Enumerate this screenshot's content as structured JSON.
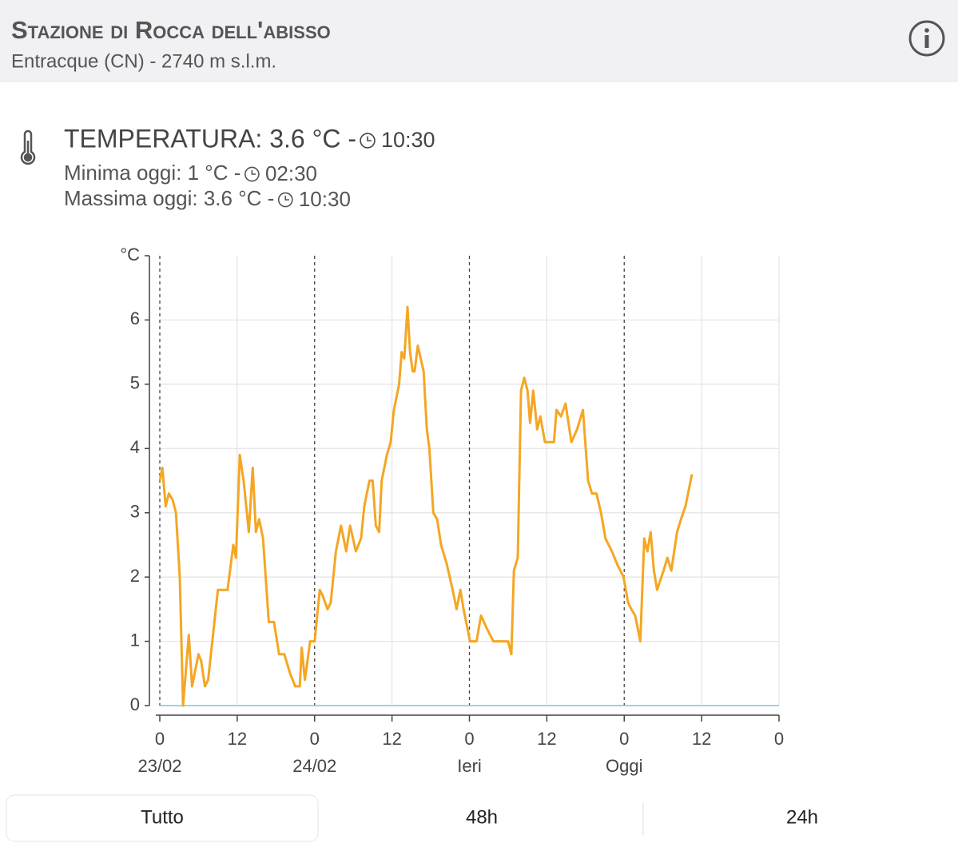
{
  "header": {
    "title": "Stazione di Rocca dell'abisso",
    "subtitle": "Entracque (CN) - 2740 m s.l.m."
  },
  "readings": [
    {
      "label": "TEMPERATURA: 3.6 °C -",
      "time": "10:30"
    },
    {
      "label": "Minima oggi: 1 °C -",
      "time": "02:30"
    },
    {
      "label": "Massima oggi: 3.6 °C -",
      "time": "10:30"
    }
  ],
  "chart_data": {
    "type": "line",
    "y_label": "°C",
    "x": [
      0,
      0.4,
      0.9,
      1.4,
      2,
      2.5,
      3.1,
      3.6,
      4.5,
      5,
      6,
      6.4,
      7,
      7.5,
      9,
      10.5,
      11.4,
      11.8,
      12.4,
      13,
      13.8,
      14.4,
      14.9,
      15.4,
      16,
      16.9,
      17.7,
      18.5,
      19.3,
      20.2,
      21,
      21.7,
      22,
      22.5,
      23.3,
      24,
      24.8,
      25.3,
      26,
      26.5,
      27.3,
      28.1,
      28.9,
      29.5,
      30.4,
      31.2,
      31.7,
      32.5,
      33,
      33.5,
      34,
      34.4,
      35.2,
      35.8,
      36.3,
      37.1,
      37.5,
      37.9,
      38.4,
      38.8,
      39.2,
      39.5,
      40,
      40.9,
      41.4,
      41.8,
      42.4,
      43,
      43.6,
      44.5,
      45.4,
      46,
      46.6,
      47.1,
      48.1,
      49.1,
      49.8,
      50.7,
      51.7,
      52.5,
      53.4,
      54,
      54.5,
      54.9,
      55.5,
      56,
      56.5,
      57,
      57.4,
      57.9,
      58.5,
      59,
      59.7,
      61.1,
      61.5,
      62.2,
      62.9,
      63.8,
      64.7,
      65.6,
      66.4,
      67,
      67.7,
      68.4,
      69.1,
      70.1,
      70.9,
      71.9,
      72.6,
      73.1,
      73.7,
      74.5,
      75.1,
      75.6,
      76.1,
      76.6,
      77.1,
      78.1,
      78.7,
      79.3,
      80.2,
      80.8,
      81.5,
      82.5
    ],
    "series": [
      {
        "name": "Temperatura",
        "color": "#f5a623",
        "values": [
          3.5,
          3.7,
          3.1,
          3.3,
          3.2,
          3,
          2,
          0,
          1.1,
          0.3,
          0.8,
          0.7,
          0.3,
          0.4,
          1.8,
          1.8,
          2.5,
          2.3,
          3.9,
          3.5,
          2.7,
          3.7,
          2.7,
          2.9,
          2.6,
          1.3,
          1.3,
          0.8,
          0.8,
          0.5,
          0.3,
          0.3,
          0.9,
          0.4,
          1,
          1,
          1.8,
          1.7,
          1.5,
          1.6,
          2.4,
          2.8,
          2.4,
          2.8,
          2.4,
          2.6,
          3.1,
          3.5,
          3.5,
          2.8,
          2.7,
          3.5,
          3.9,
          4.1,
          4.6,
          5,
          5.5,
          5.4,
          6.2,
          5.5,
          5.2,
          5.2,
          5.6,
          5.2,
          4.3,
          4,
          3,
          2.9,
          2.5,
          2.2,
          1.8,
          1.5,
          1.8,
          1.5,
          1,
          1,
          1.4,
          1.2,
          1,
          1,
          1,
          1,
          0.8,
          2.1,
          2.3,
          4.9,
          5.1,
          4.9,
          4.4,
          4.9,
          4.3,
          4.5,
          4.1,
          4.1,
          4.6,
          4.5,
          4.7,
          4.1,
          4.3,
          4.6,
          3.5,
          3.3,
          3.3,
          3,
          2.6,
          2.4,
          2.2,
          2,
          1.6,
          1.5,
          1.4,
          1,
          2.6,
          2.4,
          2.7,
          2.1,
          1.8,
          2.1,
          2.3,
          2.1,
          2.7,
          2.9,
          3.1,
          3.6
        ]
      }
    ],
    "baseline_color": "#7ec8d8",
    "xlim": [
      0,
      96
    ],
    "ylim": [
      0,
      7
    ],
    "xticks": [
      0,
      12,
      {
        "value": 24,
        "label": "0"
      },
      {
        "value": 36,
        "label": "12"
      },
      {
        "value": 48,
        "label": "0"
      },
      {
        "value": 60,
        "label": "12"
      },
      {
        "value": 72,
        "label": "0"
      },
      {
        "value": 84,
        "label": "12"
      },
      {
        "value": 96,
        "label": "0"
      }
    ],
    "x_day_labels": [
      {
        "value": 0,
        "label": "23/02"
      },
      {
        "value": 24,
        "label": "24/02"
      },
      {
        "value": 48,
        "label": "Ieri"
      },
      {
        "value": 72,
        "label": "Oggi"
      }
    ],
    "yticks": [
      0,
      1,
      2,
      3,
      4,
      5,
      6
    ],
    "grid": true
  },
  "controls": [
    "Tutto",
    "48h",
    "24h"
  ]
}
